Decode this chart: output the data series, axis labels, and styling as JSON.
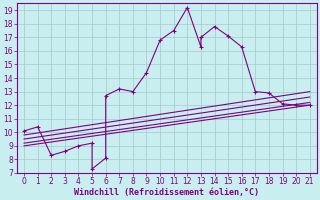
{
  "xlabel": "Windchill (Refroidissement éolien,°C)",
  "background_color": "#c8eef0",
  "grid_color": "#aacfd2",
  "line_color": "#800080",
  "xlim": [
    -0.5,
    21.5
  ],
  "ylim": [
    7,
    19.5
  ],
  "xticks": [
    0,
    1,
    2,
    3,
    4,
    5,
    6,
    7,
    8,
    9,
    10,
    11,
    12,
    13,
    14,
    15,
    16,
    17,
    18,
    19,
    20,
    21
  ],
  "yticks": [
    7,
    8,
    9,
    10,
    11,
    12,
    13,
    14,
    15,
    16,
    17,
    18,
    19
  ],
  "main_x": [
    0,
    1,
    2,
    3,
    4,
    5,
    5,
    6,
    6,
    7,
    8,
    9,
    10,
    11,
    12,
    13,
    13,
    14,
    15,
    16,
    17,
    18,
    19,
    20,
    21
  ],
  "main_y": [
    10.1,
    10.4,
    8.3,
    8.6,
    9.0,
    9.2,
    7.3,
    8.1,
    12.7,
    13.2,
    13.0,
    14.4,
    16.8,
    17.5,
    19.2,
    16.3,
    17.0,
    17.8,
    17.1,
    16.3,
    13.0,
    12.9,
    12.1,
    12.0,
    12.0
  ],
  "line2_x": [
    0,
    21
  ],
  "line2_y": [
    9.8,
    13.0
  ],
  "line3_x": [
    0,
    21
  ],
  "line3_y": [
    9.5,
    12.6
  ],
  "line4_x": [
    0,
    21
  ],
  "line4_y": [
    9.2,
    12.2
  ],
  "line5_x": [
    0,
    21
  ],
  "line5_y": [
    9.0,
    12.0
  ],
  "xlabel_fontsize": 6,
  "tick_fontsize": 5.5
}
